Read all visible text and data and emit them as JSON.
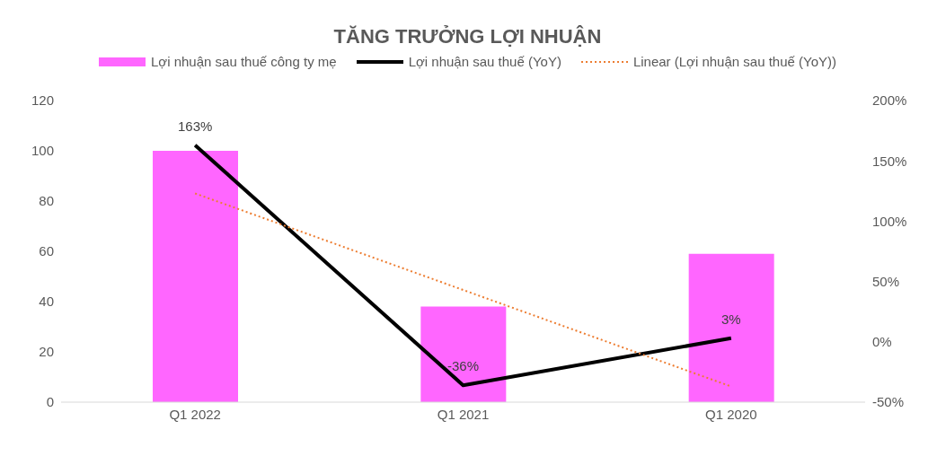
{
  "chart_data": {
    "type": "bar",
    "title": "TĂNG TRƯỞNG LỢI NHUẬN",
    "categories": [
      "Q1 2022",
      "Q1 2021",
      "Q1 2020"
    ],
    "series": [
      {
        "name": "Lợi nhuận sau thuế công ty mẹ",
        "color": "#ff66ff",
        "values": [
          100,
          38,
          59
        ]
      },
      {
        "name": "Lợi nhuận sau thuế (YoY)",
        "type": "line",
        "axis": "y2",
        "color": "#000000",
        "line_style": "solid",
        "values": [
          163,
          -36,
          3
        ],
        "value_labels": [
          "163%",
          "-36%",
          "3%"
        ]
      },
      {
        "name": "Linear (Lợi nhuận sau thuế (YoY))",
        "type": "line",
        "axis": "y2",
        "color": "#ed7d31",
        "line_style": "dotted",
        "values": [
          123,
          43,
          -37
        ]
      }
    ],
    "ylim": [
      0,
      120
    ],
    "yticks": [
      0,
      20,
      40,
      60,
      80,
      100,
      120
    ],
    "y2lim": [
      -50,
      200
    ],
    "y2ticks": [
      {
        "value": -50,
        "label": "-50%"
      },
      {
        "value": 0,
        "label": "0%"
      },
      {
        "value": 50,
        "label": "50%"
      },
      {
        "value": 100,
        "label": "100%"
      },
      {
        "value": 150,
        "label": "150%"
      },
      {
        "value": 200,
        "label": "200%"
      }
    ],
    "marker": "none",
    "legend": "top"
  }
}
